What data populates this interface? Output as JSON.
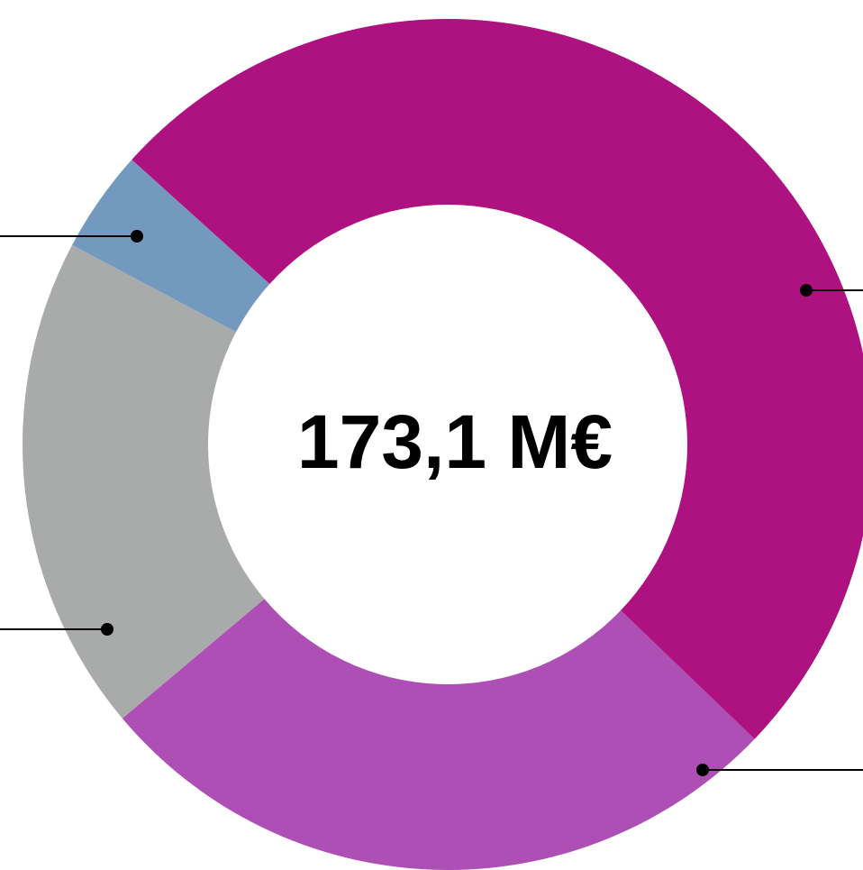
{
  "chart_data": {
    "type": "donut",
    "center_label": "173,1 M€",
    "categories": [
      null,
      null,
      null,
      null
    ],
    "values": [
      50.5,
      26.7,
      18.9,
      3.9
    ],
    "colors": [
      "#ad1280",
      "#ae4fb5",
      "#a9abaa",
      "#7499be"
    ]
  }
}
